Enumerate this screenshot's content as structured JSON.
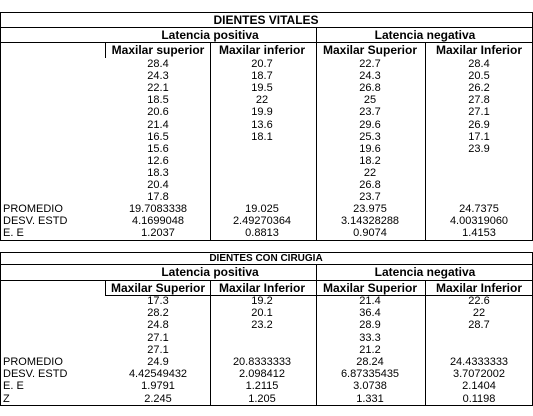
{
  "tables": [
    {
      "title": "DIENTES VITALES",
      "groups": [
        "Latencia positiva",
        "Latencia negativa"
      ],
      "columns": [
        "Maxilar superior",
        "Maxilar inferior",
        "Maxilar Superior",
        "Maxilar Inferior"
      ],
      "rows": [
        [
          null,
          "28.4",
          "20.7",
          "22.7",
          "28.4"
        ],
        [
          null,
          "24.3",
          "18.7",
          "24.3",
          "20.5"
        ],
        [
          null,
          "22.1",
          "19.5",
          "26.8",
          "26.2"
        ],
        [
          null,
          "18.5",
          "22",
          "25",
          "27.8"
        ],
        [
          null,
          "20.6",
          "19.9",
          "23.7",
          "27.1"
        ],
        [
          null,
          "21.4",
          "13.6",
          "29.6",
          "26.9"
        ],
        [
          null,
          "16.5",
          "18.1",
          "25.3",
          "17.1"
        ],
        [
          null,
          "15.6",
          null,
          "19.6",
          "23.9"
        ],
        [
          null,
          "12.6",
          null,
          "18.2",
          null
        ],
        [
          null,
          "18.3",
          null,
          "22",
          null
        ],
        [
          null,
          "20.4",
          null,
          "26.8",
          null
        ],
        [
          null,
          "17.8",
          null,
          "23.7",
          null
        ],
        [
          "PROMEDIO",
          "19.7083338",
          "19.025",
          "23.975",
          "24.7375"
        ],
        [
          "DESV. ESTD",
          "4.1699048",
          "2.49270364",
          "3.14328288",
          "4.00319060"
        ],
        [
          "E. E",
          "1.2037",
          "0.8813",
          "0.9074",
          "1.4153"
        ]
      ]
    },
    {
      "title": "DIENTES CON CIRUGIA",
      "groups": [
        "Latencia positiva",
        "Latencia negativa"
      ],
      "columns": [
        "Maxilar Superior",
        "Maxilar Inferior",
        "Maxilar Superior",
        "Maxilar Inferior"
      ],
      "rows": [
        [
          null,
          "17.3",
          "19.2",
          "21.4",
          "22.6"
        ],
        [
          null,
          "28.2",
          "20.1",
          "36.4",
          "22"
        ],
        [
          null,
          "24.8",
          "23.2",
          "28.9",
          "28.7"
        ],
        [
          null,
          "27.1",
          null,
          "33.3",
          null
        ],
        [
          null,
          "27.1",
          null,
          "21.2",
          null
        ],
        [
          "PROMEDIO",
          "24.9",
          "20.8333333",
          "28.24",
          "24.4333333"
        ],
        [
          "DESV. ESTD",
          "4.42549432",
          "2.098412",
          "6.87335435",
          "3.7072002"
        ],
        [
          "E. E",
          "1.9791",
          "1.2115",
          "3.0738",
          "2.1404"
        ],
        [
          "Z",
          "2.245",
          "1.205",
          "1.331",
          "0.1198"
        ]
      ]
    }
  ]
}
